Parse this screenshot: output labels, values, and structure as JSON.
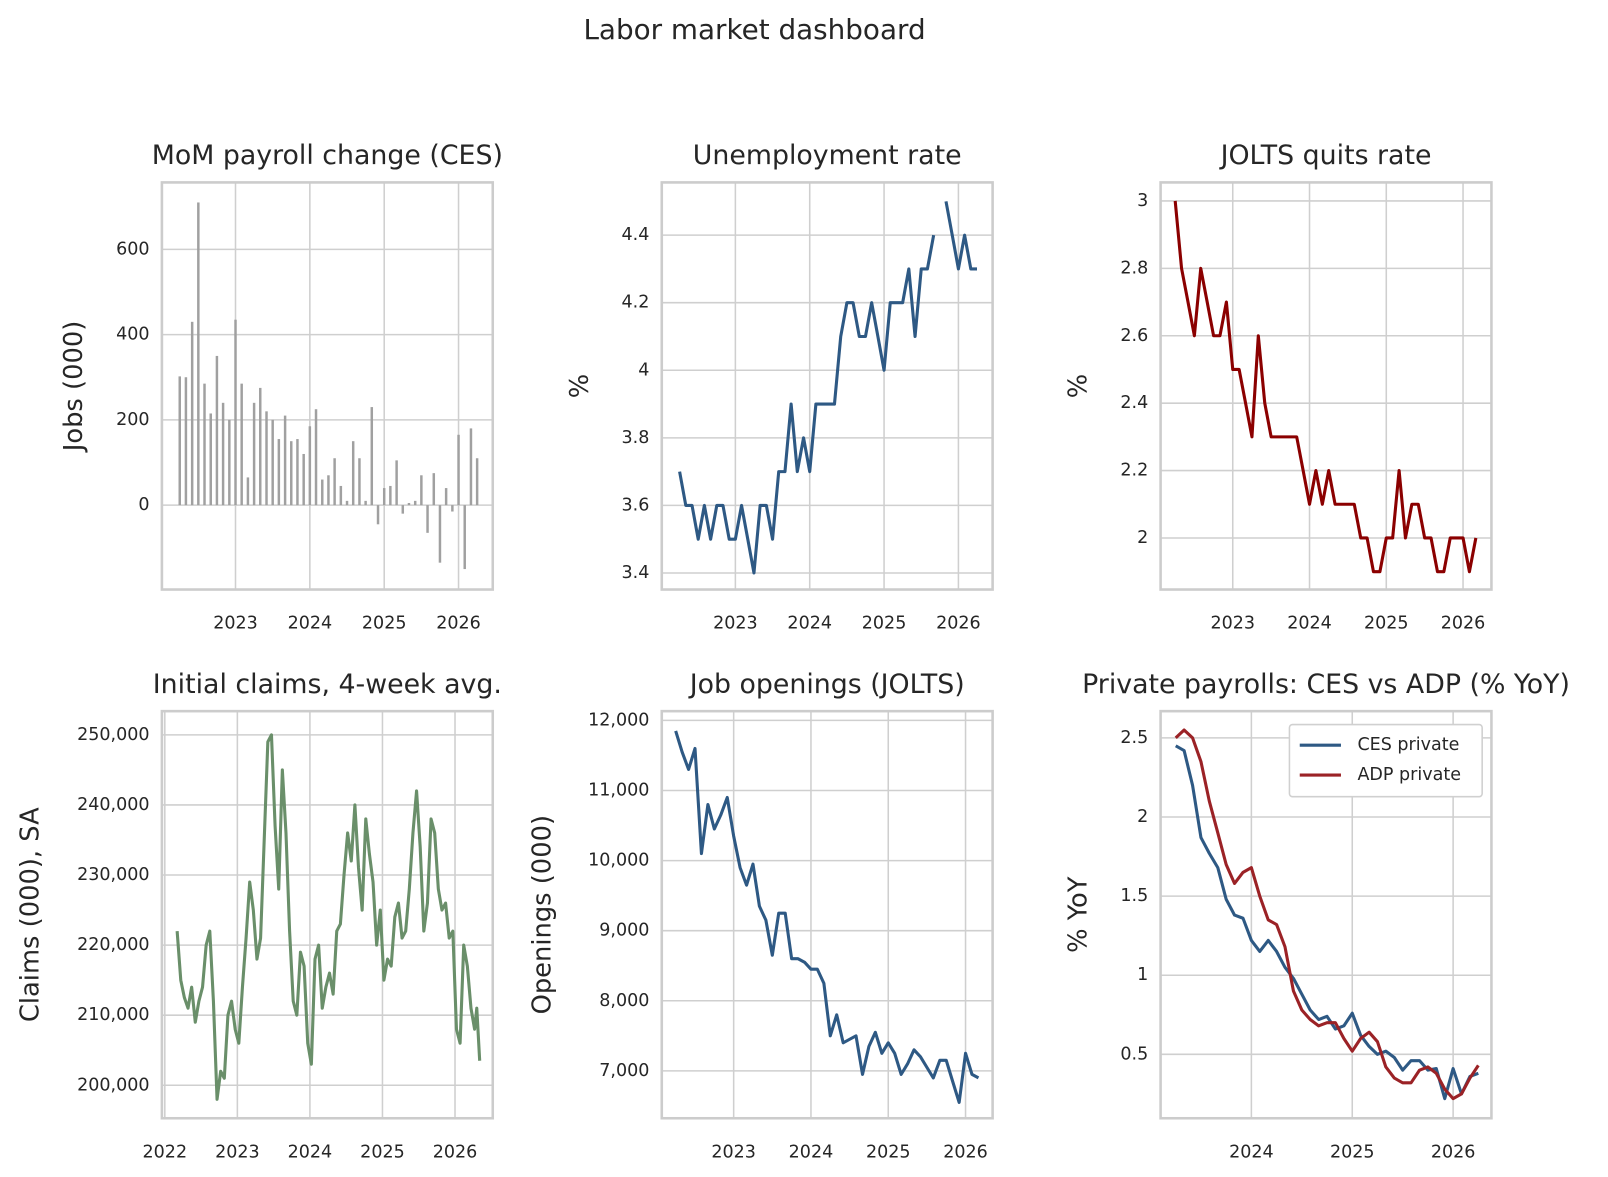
{
  "title": "Labor market dashboard",
  "chart_data": [
    {
      "type": "bar",
      "title": "MoM payroll change (CES)",
      "ylabel": "Jobs (000)",
      "color": "#a0a0a0",
      "grid": true,
      "x": [
        2022.25,
        2022.333,
        2022.417,
        2022.5,
        2022.583,
        2022.667,
        2022.75,
        2022.833,
        2022.917,
        2023.0,
        2023.083,
        2023.167,
        2023.25,
        2023.333,
        2023.417,
        2023.5,
        2023.583,
        2023.667,
        2023.75,
        2023.833,
        2023.917,
        2024.0,
        2024.083,
        2024.167,
        2024.25,
        2024.333,
        2024.417,
        2024.5,
        2024.583,
        2024.667,
        2024.75,
        2024.833,
        2024.917,
        2025.0,
        2025.083,
        2025.167,
        2025.25,
        2025.333,
        2025.417,
        2025.5,
        2025.583,
        2025.667,
        2025.75,
        2025.833,
        2025.917,
        2026.0,
        2026.083,
        2026.167,
        2026.25
      ],
      "values": [
        302,
        300,
        430,
        710,
        285,
        215,
        350,
        240,
        200,
        435,
        285,
        65,
        240,
        275,
        220,
        200,
        155,
        210,
        150,
        155,
        120,
        185,
        225,
        60,
        70,
        110,
        45,
        10,
        150,
        110,
        10,
        230,
        -45,
        40,
        45,
        105,
        -20,
        5,
        10,
        70,
        -65,
        75,
        -135,
        40,
        -15,
        165,
        -150,
        180,
        110
      ],
      "xlim": [
        2022.01,
        2026.46
      ],
      "xticks": [
        2023,
        2024,
        2025,
        2026
      ],
      "ylim": [
        -198,
        757
      ],
      "yticks": [
        0,
        200,
        400,
        600
      ]
    },
    {
      "type": "line",
      "title": "Unemployment rate",
      "ylabel": "%",
      "color": "#2e5984",
      "grid": true,
      "x": [
        2022.25,
        2022.333,
        2022.417,
        2022.5,
        2022.583,
        2022.667,
        2022.75,
        2022.833,
        2022.917,
        2023.0,
        2023.083,
        2023.167,
        2023.25,
        2023.333,
        2023.417,
        2023.5,
        2023.583,
        2023.667,
        2023.75,
        2023.833,
        2023.917,
        2024.0,
        2024.083,
        2024.167,
        2024.25,
        2024.333,
        2024.417,
        2024.5,
        2024.583,
        2024.667,
        2024.75,
        2024.833,
        2024.917,
        2025.0,
        2025.083,
        2025.167,
        2025.25,
        2025.333,
        2025.417,
        2025.5,
        2025.583,
        2025.667,
        2025.75,
        2025.833,
        2025.917,
        2026.0,
        2026.083,
        2026.167,
        2026.25
      ],
      "values": [
        3.7,
        3.6,
        3.6,
        3.5,
        3.6,
        3.5,
        3.6,
        3.6,
        3.5,
        3.5,
        3.6,
        3.5,
        3.4,
        3.6,
        3.6,
        3.5,
        3.7,
        3.7,
        3.9,
        3.7,
        3.8,
        3.7,
        3.9,
        3.9,
        3.9,
        3.9,
        4.1,
        4.2,
        4.2,
        4.1,
        4.1,
        4.2,
        4.1,
        4.0,
        4.2,
        4.2,
        4.2,
        4.3,
        4.1,
        4.3,
        4.3,
        4.4,
        null,
        4.5,
        4.4,
        4.3,
        4.4,
        4.3,
        4.3
      ],
      "xlim": [
        2022.01,
        2026.46
      ],
      "xticks": [
        2023,
        2024,
        2025,
        2026
      ],
      "ylim": [
        3.351,
        4.556
      ],
      "yticks": [
        3.4,
        3.6,
        3.8,
        4,
        4.2,
        4.4
      ]
    },
    {
      "type": "line",
      "title": "JOLTS quits rate",
      "ylabel": "%",
      "color": "#8b0000",
      "grid": true,
      "x": [
        2022.25,
        2022.333,
        2022.417,
        2022.5,
        2022.583,
        2022.667,
        2022.75,
        2022.833,
        2022.917,
        2023.0,
        2023.083,
        2023.167,
        2023.25,
        2023.333,
        2023.417,
        2023.5,
        2023.583,
        2023.667,
        2023.75,
        2023.833,
        2023.917,
        2024.0,
        2024.083,
        2024.167,
        2024.25,
        2024.333,
        2024.417,
        2024.5,
        2024.583,
        2024.667,
        2024.75,
        2024.833,
        2024.917,
        2025.0,
        2025.083,
        2025.167,
        2025.25,
        2025.333,
        2025.417,
        2025.5,
        2025.583,
        2025.667,
        2025.75,
        2025.833,
        2025.917,
        2026.0,
        2026.083,
        2026.167
      ],
      "values": [
        3.0,
        2.8,
        2.7,
        2.6,
        2.8,
        2.7,
        2.6,
        2.6,
        2.7,
        2.5,
        2.5,
        2.4,
        2.3,
        2.6,
        2.4,
        2.3,
        2.3,
        2.3,
        2.3,
        2.3,
        2.2,
        2.1,
        2.2,
        2.1,
        2.2,
        2.1,
        2.1,
        2.1,
        2.1,
        2.0,
        2.0,
        1.9,
        1.9,
        2.0,
        2.0,
        2.2,
        2.0,
        2.1,
        2.1,
        2.0,
        2.0,
        1.9,
        1.9,
        2.0,
        2.0,
        2.0,
        1.9,
        2.0
      ],
      "xlim": [
        2022.06,
        2026.37
      ],
      "xticks": [
        2023,
        2024,
        2025,
        2026
      ],
      "ylim": [
        1.847,
        3.055
      ],
      "yticks": [
        2,
        2.2,
        2.4,
        2.6,
        2.8,
        3
      ]
    },
    {
      "type": "line",
      "title": "Initial claims, 4-week avg.",
      "ylabel": "Claims (000), SA",
      "color": "#6a8f6a",
      "grid": true,
      "x": [
        2022.17,
        2022.22,
        2022.27,
        2022.32,
        2022.37,
        2022.42,
        2022.47,
        2022.52,
        2022.57,
        2022.62,
        2022.67,
        2022.72,
        2022.77,
        2022.82,
        2022.87,
        2022.92,
        2022.97,
        2023.02,
        2023.07,
        2023.12,
        2023.17,
        2023.22,
        2023.27,
        2023.32,
        2023.37,
        2023.42,
        2023.47,
        2023.52,
        2023.57,
        2023.62,
        2023.67,
        2023.72,
        2023.77,
        2023.82,
        2023.87,
        2023.92,
        2023.97,
        2024.02,
        2024.07,
        2024.12,
        2024.17,
        2024.22,
        2024.27,
        2024.32,
        2024.37,
        2024.42,
        2024.47,
        2024.52,
        2024.57,
        2024.62,
        2024.67,
        2024.72,
        2024.77,
        2024.82,
        2024.87,
        2024.92,
        2024.97,
        2025.02,
        2025.07,
        2025.12,
        2025.17,
        2025.22,
        2025.27,
        2025.32,
        2025.37,
        2025.42,
        2025.47,
        2025.52,
        2025.57,
        2025.62,
        2025.67,
        2025.72,
        2025.77,
        2025.82,
        2025.87,
        2025.92,
        2025.97,
        2026.02,
        2026.07,
        2026.12,
        2026.17,
        2026.22,
        2026.27,
        2026.3,
        2026.34
      ],
      "values": [
        222000,
        215000,
        212500,
        211000,
        214000,
        209000,
        212000,
        214000,
        220000,
        222000,
        212000,
        198000,
        202000,
        201000,
        210000,
        212000,
        208000,
        206000,
        214000,
        221000,
        229000,
        225000,
        218000,
        221000,
        235000,
        249000,
        250000,
        237000,
        228000,
        245000,
        236000,
        222000,
        212000,
        210000,
        219000,
        217000,
        206000,
        203000,
        218000,
        220000,
        211000,
        214000,
        216000,
        213000,
        222000,
        223000,
        230000,
        236000,
        232000,
        240000,
        231000,
        225000,
        238000,
        233000,
        229000,
        220000,
        225000,
        215000,
        218000,
        217000,
        224000,
        226000,
        221000,
        222000,
        228000,
        236000,
        242000,
        234000,
        222000,
        226000,
        238000,
        236000,
        228000,
        225000,
        226000,
        221000,
        222000,
        208000,
        206000,
        220000,
        217000,
        211000,
        208000,
        211000,
        203500
      ],
      "xlim": [
        2021.96,
        2026.52
      ],
      "xticks": [
        2022,
        2023,
        2024,
        2025,
        2026
      ],
      "ylim": [
        195294,
        253382
      ],
      "yticks": [
        {
          "value": 200000,
          "label": "200,000"
        },
        {
          "value": 210000,
          "label": "210,000"
        },
        {
          "value": 220000,
          "label": "220,000"
        },
        {
          "value": 230000,
          "label": "230,000"
        },
        {
          "value": 240000,
          "label": "240,000"
        },
        {
          "value": 250000,
          "label": "250,000"
        }
      ]
    },
    {
      "type": "line",
      "title": "Job openings (JOLTS)",
      "ylabel": "Openings (000)",
      "color": "#2e5984",
      "grid": true,
      "x": [
        2022.25,
        2022.333,
        2022.417,
        2022.5,
        2022.583,
        2022.667,
        2022.75,
        2022.833,
        2022.917,
        2023.0,
        2023.083,
        2023.167,
        2023.25,
        2023.333,
        2023.417,
        2023.5,
        2023.583,
        2023.667,
        2023.75,
        2023.833,
        2023.917,
        2024.0,
        2024.083,
        2024.167,
        2024.25,
        2024.333,
        2024.417,
        2024.5,
        2024.583,
        2024.667,
        2024.75,
        2024.833,
        2024.917,
        2025.0,
        2025.083,
        2025.167,
        2025.25,
        2025.333,
        2025.417,
        2025.5,
        2025.583,
        2025.667,
        2025.75,
        2025.833,
        2025.917,
        2026.0,
        2026.083,
        2026.167
      ],
      "values": [
        11850,
        11550,
        11300,
        11600,
        10100,
        10800,
        10450,
        10650,
        10900,
        10350,
        9900,
        9650,
        9950,
        9350,
        9150,
        8650,
        9250,
        9250,
        8600,
        8600,
        8550,
        8450,
        8450,
        8250,
        7500,
        7800,
        7400,
        7450,
        7500,
        6950,
        7350,
        7550,
        7250,
        7400,
        7250,
        6950,
        7100,
        7300,
        7200,
        7050,
        6900,
        7150,
        7150,
        6850,
        6550,
        7250,
        6950,
        6900
      ],
      "xlim": [
        2022.07,
        2026.35
      ],
      "xticks": [
        2023,
        2024,
        2025,
        2026
      ],
      "ylim": [
        6324,
        12132
      ],
      "yticks": [
        {
          "value": 7000,
          "label": "7,000"
        },
        {
          "value": 8000,
          "label": "8,000"
        },
        {
          "value": 9000,
          "label": "9,000"
        },
        {
          "value": 10000,
          "label": "10,000"
        },
        {
          "value": 11000,
          "label": "11,000"
        },
        {
          "value": 12000,
          "label": "12,000"
        }
      ]
    },
    {
      "type": "line",
      "title": "Private payrolls: CES vs ADP (% YoY)",
      "ylabel": "% YoY",
      "grid": true,
      "legend": "upper right",
      "x": [
        2023.25,
        2023.333,
        2023.417,
        2023.5,
        2023.583,
        2023.667,
        2023.75,
        2023.833,
        2023.917,
        2024.0,
        2024.083,
        2024.167,
        2024.25,
        2024.333,
        2024.417,
        2024.5,
        2024.583,
        2024.667,
        2024.75,
        2024.833,
        2024.917,
        2025.0,
        2025.083,
        2025.167,
        2025.25,
        2025.333,
        2025.417,
        2025.5,
        2025.583,
        2025.667,
        2025.75,
        2025.833,
        2025.917,
        2026.0,
        2026.083,
        2026.167,
        2026.25
      ],
      "series": [
        {
          "name": "CES private",
          "color": "#2e5984",
          "values": [
            2.45,
            2.42,
            2.2,
            1.87,
            1.77,
            1.68,
            1.48,
            1.38,
            1.36,
            1.22,
            1.15,
            1.22,
            1.15,
            1.05,
            0.98,
            0.88,
            0.78,
            0.72,
            0.74,
            0.66,
            0.68,
            0.76,
            0.62,
            0.55,
            0.5,
            0.52,
            0.48,
            0.4,
            0.46,
            0.46,
            0.4,
            0.41,
            0.22,
            0.41,
            0.25,
            0.36,
            0.38
          ]
        },
        {
          "name": "ADP private",
          "color": "#9b2226",
          "values": [
            2.5,
            2.55,
            2.5,
            2.35,
            2.1,
            1.9,
            1.7,
            1.58,
            1.65,
            1.68,
            1.5,
            1.35,
            1.32,
            1.18,
            0.9,
            0.78,
            0.72,
            0.68,
            0.7,
            0.7,
            0.6,
            0.52,
            0.6,
            0.64,
            0.58,
            0.42,
            0.35,
            0.32,
            0.32,
            0.4,
            0.42,
            0.38,
            0.28,
            0.22,
            0.25,
            0.35,
            0.43
          ]
        }
      ],
      "xlim": [
        2023.1,
        2026.38
      ],
      "xticks": [
        2024,
        2025,
        2026
      ],
      "ylim": [
        0.096,
        2.669
      ],
      "yticks": [
        0.5,
        1,
        1.5,
        2,
        2.5
      ]
    }
  ]
}
